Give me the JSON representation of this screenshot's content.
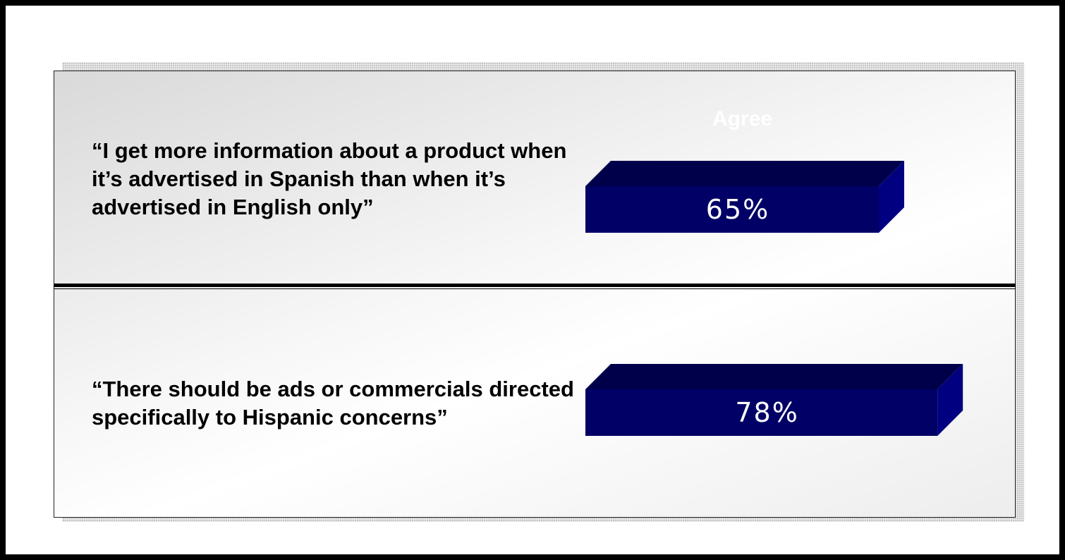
{
  "chart_data": {
    "type": "bar",
    "orientation": "horizontal",
    "series_header": "Agree",
    "categories": [
      "“I get more information about a product when it’s advertised in Spanish than when it’s advertised in English only”",
      "“There should be ads or commercials directed specifically to Hispanic concerns”"
    ],
    "values": [
      65,
      78
    ],
    "value_labels": [
      "65%",
      "78%"
    ],
    "unit": "%",
    "xlim": [
      0,
      100
    ],
    "bar_style": "3d",
    "grid": false
  },
  "colors": {
    "bar_front": "#000066",
    "bar_top": "#00004a",
    "bar_side": "#000080",
    "bar_label": "#ffffff"
  }
}
